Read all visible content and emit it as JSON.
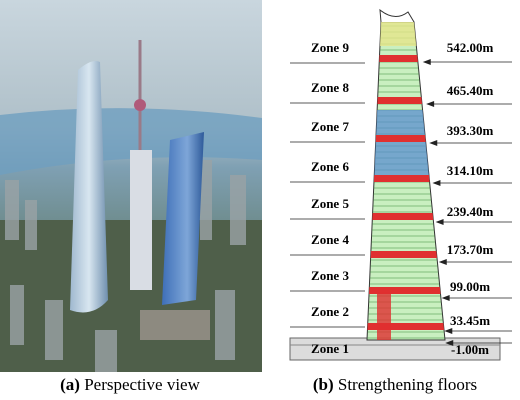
{
  "figure": {
    "panels": [
      {
        "tag": "(a)",
        "caption": "Perspective view"
      },
      {
        "tag": "(b)",
        "caption": "Strengthening floors"
      }
    ],
    "zones": [
      {
        "label": "Zone 9",
        "elevation": "542.00m"
      },
      {
        "label": "Zone 8",
        "elevation": "465.40m"
      },
      {
        "label": "Zone 7",
        "elevation": "393.30m"
      },
      {
        "label": "Zone 6",
        "elevation": "314.10m"
      },
      {
        "label": "Zone 5",
        "elevation": "239.40m"
      },
      {
        "label": "Zone 4",
        "elevation": "173.70m"
      },
      {
        "label": "Zone 3",
        "elevation": "99.00m"
      },
      {
        "label": "Zone 2",
        "elevation": "33.45m"
      },
      {
        "label": "Zone 1",
        "elevation": "-1.00m"
      }
    ]
  }
}
